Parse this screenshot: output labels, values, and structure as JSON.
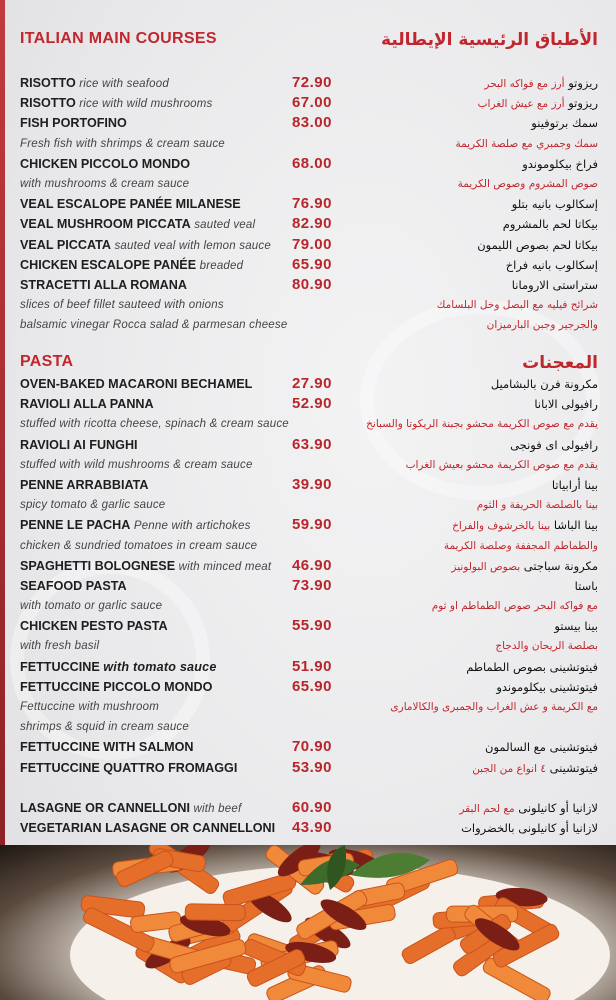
{
  "colors": {
    "accent": "#c0272d",
    "price": "#b8262c",
    "text": "#1e1e1e"
  },
  "main": {
    "title_en": "ITALIAN MAIN COURSES",
    "title_ar": "الأطباق الرئيسية الإيطالية",
    "rows": [
      {
        "en_name": "RISOTTO",
        "en_desc": "rice with seafood",
        "price": "72.90",
        "ar_name": "ريزوتو",
        "ar_desc": "أرز مع فواكه البحر"
      },
      {
        "en_name": "RISOTTO",
        "en_desc": "rice with wild mushrooms",
        "price": "67.00",
        "ar_name": "ريزوتو",
        "ar_desc": "أرز مع عيش الغراب"
      },
      {
        "en_name": "FISH PORTOFINO",
        "price": "83.00",
        "ar_name": "سمك برتوفينو"
      },
      {
        "desc_en": "Fresh fish with shrimps & cream sauce",
        "desc_ar": "سمك وجمبري مع صلصة الكريمة"
      },
      {
        "en_name": "CHICKEN PICCOLO MONDO",
        "price": "68.00",
        "ar_name": "فراخ بيكلوموندو"
      },
      {
        "desc_en": "with mushrooms & cream sauce",
        "desc_ar": "صوص المشروم وصوص الكريمة"
      },
      {
        "en_name": "VEAL ESCALOPE PANÉE MILANESE",
        "price": "76.90",
        "ar_name": "إسكالوب بانيه بتلو"
      },
      {
        "en_name": "VEAL MUSHROOM PICCATA",
        "en_desc": "sauted veal",
        "price": "82.90",
        "ar_name": "بيكاتا لحم بالمشروم"
      },
      {
        "en_name": "VEAL PICCATA",
        "en_desc": "sauted veal with lemon sauce",
        "price": "79.00",
        "ar_name": "بيكاتا لحم بصوص الليمون"
      },
      {
        "en_name": "CHICKEN ESCALOPE PANÉE",
        "en_desc": "breaded",
        "price": "65.90",
        "ar_name": "إسكالوب بانيه فراخ"
      },
      {
        "en_name": "STRACETTI ALLA ROMANA",
        "price": "80.90",
        "ar_name": "ستراستى الارومانا"
      },
      {
        "desc_en": "slices of beef fillet sauteed with onions",
        "desc_ar": "شرائح فيليه مع البصل وخل البلسامك"
      },
      {
        "desc_en": "balsamic vinegar Rocca salad & parmesan cheese",
        "desc_ar": "والجرجير وجبن البارميزان"
      }
    ]
  },
  "pasta": {
    "title_en": "PASTA",
    "title_ar": "المعجنات",
    "rows": [
      {
        "en_name": "OVEN-BAKED MACARONI BECHAMEL",
        "price": "27.90",
        "ar_name": "مكرونة فرن بالبشاميل"
      },
      {
        "en_name": "RAVIOLI ALLA PANNA",
        "price": "52.90",
        "ar_name": "رافيولى الابانا"
      },
      {
        "desc_en": "stuffed with ricotta cheese, spinach & cream sauce",
        "desc_ar": "يقدم مع صوص الكريمة محشو بجبنة الريكوتا والسبانخ"
      },
      {
        "en_name": "RAVIOLI AI FUNGHI",
        "price": "63.90",
        "ar_name": "رافيولى اى فونجى"
      },
      {
        "desc_en": "stuffed with wild mushrooms & cream sauce",
        "desc_ar": "يقدم مع صوص الكريمة محشو بعيش الغراب"
      },
      {
        "en_name": "PENNE ARRABBIATA",
        "price": "39.90",
        "ar_name": "بينا أرابياتا"
      },
      {
        "desc_en": "spicy tomato & garlic sauce",
        "desc_ar": "بينا بالصلصة الحريفة و الثوم"
      },
      {
        "en_name": "PENNE LE PACHA",
        "en_desc": "Penne with artichokes",
        "price": "59.90",
        "ar_name": "بينا الباشا",
        "ar_desc": "بينا بالخرشوف والفراخ"
      },
      {
        "desc_en": "chicken & sundried tomatoes in cream sauce",
        "desc_ar": "والطماطم المجففة وصلصة الكريمة"
      },
      {
        "en_name": "SPAGHETTI BOLOGNESE",
        "en_desc": "with minced meat",
        "price": "46.90",
        "ar_name": "مكرونة سباجتى",
        "ar_desc": "بصوص البولونيز"
      },
      {
        "en_name": "SEAFOOD PASTA",
        "price": "73.90",
        "ar_name": "باستا"
      },
      {
        "desc_en": "with tomato or garlic sauce",
        "desc_ar": "مع فواكه البحر  صوص الطماطم او ثوم"
      },
      {
        "en_name": "CHICKEN PESTO PASTA",
        "price": "55.90",
        "ar_name": "بينا بيستو"
      },
      {
        "desc_en": "with fresh basil",
        "desc_ar": "بصلصة الريحان والدجاج"
      },
      {
        "en_name": "FETTUCCINE",
        "en_desc": "with tomato sauce",
        "en_desc_bold": true,
        "price": "51.90",
        "ar_name": "فيتوتشينى بصوص الطماطم"
      },
      {
        "en_name": "FETTUCCINE PICCOLO MONDO",
        "price": "65.90",
        "ar_name": "فيتوتشينى بيكلوموندو"
      },
      {
        "desc_en": "Fettuccine with mushroom",
        "desc_ar": "مع الكريمة و عش الغراب والجمبرى والكالامارى"
      },
      {
        "desc_en": " shrimps & squid in cream sauce"
      },
      {
        "en_name": "FETTUCCINE WITH SALMON",
        "price": "70.90",
        "ar_name": "فيتوتشينى مع السالمون"
      },
      {
        "en_name": "FETTUCCINE QUATTRO FROMAGGI",
        "price": "53.90",
        "ar_name": "فيتوتشينى",
        "ar_desc": "٤ انواع من الجبن"
      },
      {},
      {
        "en_name": "LASAGNE OR CANNELLONI",
        "en_desc": "with beef",
        "price": "60.90",
        "ar_name": "لازانيا أو كانيلونى",
        "ar_desc": "مع لحم البقر"
      },
      {
        "en_name": "VEGETARIAN LASAGNE OR CANNELLONI",
        "price": "43.90",
        "ar_name": "لازانيا أو كانيلونى بالخضروات"
      }
    ]
  },
  "photo": {
    "icon": "penne-pasta-dish-photo"
  }
}
